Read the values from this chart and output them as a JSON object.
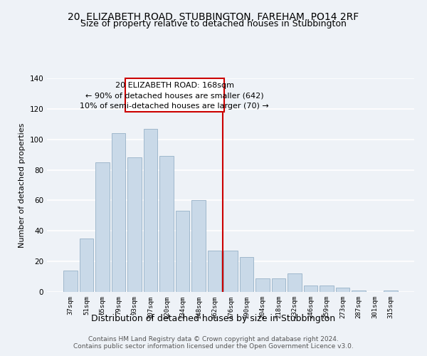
{
  "title1": "20, ELIZABETH ROAD, STUBBINGTON, FAREHAM, PO14 2RF",
  "title2": "Size of property relative to detached houses in Stubbington",
  "xlabel": "Distribution of detached houses by size in Stubbington",
  "ylabel": "Number of detached properties",
  "categories": [
    "37sqm",
    "51sqm",
    "65sqm",
    "79sqm",
    "93sqm",
    "107sqm",
    "120sqm",
    "134sqm",
    "148sqm",
    "162sqm",
    "176sqm",
    "190sqm",
    "204sqm",
    "218sqm",
    "232sqm",
    "246sqm",
    "259sqm",
    "273sqm",
    "287sqm",
    "301sqm",
    "315sqm"
  ],
  "values": [
    14,
    35,
    85,
    104,
    88,
    107,
    89,
    53,
    60,
    27,
    27,
    23,
    9,
    9,
    12,
    4,
    4,
    3,
    1,
    0,
    1
  ],
  "bar_color": "#c9d9e8",
  "bar_edge_color": "#a0b8cc",
  "vline_x_index": 9.5,
  "annotation_title": "20 ELIZABETH ROAD: 168sqm",
  "annotation_line1": "← 90% of detached houses are smaller (642)",
  "annotation_line2": "10% of semi-detached houses are larger (70) →",
  "vline_color": "#cc0000",
  "box_color": "#cc0000",
  "ylim": [
    0,
    140
  ],
  "yticks": [
    0,
    20,
    40,
    60,
    80,
    100,
    120,
    140
  ],
  "footer1": "Contains HM Land Registry data © Crown copyright and database right 2024.",
  "footer2": "Contains public sector information licensed under the Open Government Licence v3.0.",
  "bg_color": "#eef2f7",
  "grid_color": "#ffffff",
  "title1_fontsize": 10,
  "title2_fontsize": 9,
  "xlabel_fontsize": 9,
  "ylabel_fontsize": 8,
  "tick_fontsize": 6.5,
  "annotation_fontsize": 8,
  "footer_fontsize": 6.5
}
